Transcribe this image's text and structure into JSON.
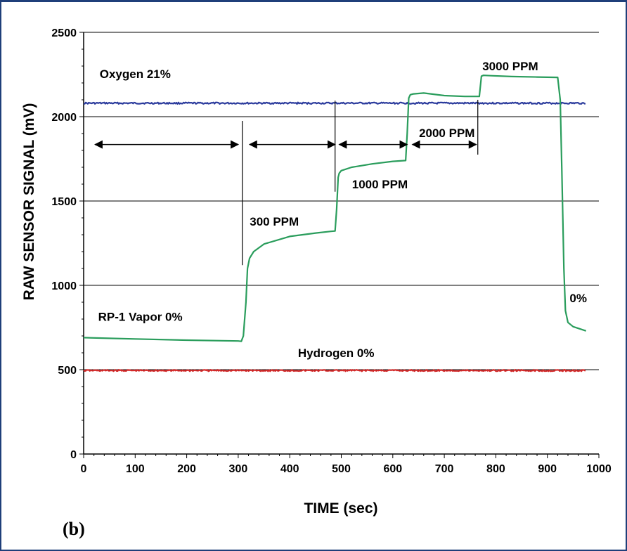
{
  "chart_data": {
    "type": "line",
    "title": "",
    "xlabel": "TIME (sec)",
    "ylabel": "RAW SENSOR SIGNAL (mV)",
    "xlim": [
      0,
      1000
    ],
    "ylim": [
      0,
      2500
    ],
    "x_ticks": [
      0,
      100,
      200,
      300,
      400,
      500,
      600,
      700,
      800,
      900,
      1000
    ],
    "y_ticks": [
      0,
      500,
      1000,
      1500,
      2000,
      2500
    ],
    "grid": "horizontal",
    "legend": "none",
    "panel_label": "(b)",
    "series": [
      {
        "name": "Oxygen 21%",
        "color": "#2a3a9c",
        "x": [
          0,
          975
        ],
        "y": [
          2080,
          2080
        ]
      },
      {
        "name": "Hydrogen 0%",
        "color": "#d42a2a",
        "x": [
          0,
          975
        ],
        "y": [
          495,
          495
        ]
      },
      {
        "name": "RP-1 Vapor",
        "color": "#2a9d5c",
        "x": [
          0,
          100,
          200,
          300,
          306,
          310,
          315,
          318,
          322,
          330,
          350,
          400,
          450,
          480,
          488,
          491,
          494,
          496,
          500,
          520,
          560,
          600,
          625,
          628,
          631,
          634,
          640,
          660,
          700,
          740,
          768,
          770,
          772,
          776,
          790,
          830,
          880,
          920,
          925,
          928,
          932,
          935,
          940,
          950,
          960,
          975
        ],
        "y": [
          690,
          682,
          675,
          670,
          668,
          700,
          900,
          1100,
          1160,
          1200,
          1245,
          1290,
          1310,
          1320,
          1322,
          1450,
          1640,
          1665,
          1680,
          1700,
          1720,
          1735,
          1740,
          1900,
          2110,
          2130,
          2135,
          2140,
          2125,
          2120,
          2120,
          2180,
          2240,
          2245,
          2243,
          2238,
          2235,
          2233,
          2100,
          1700,
          1100,
          850,
          780,
          755,
          745,
          730
        ]
      }
    ],
    "annotations": [
      {
        "text": "Oxygen  21%",
        "x": 100,
        "y": 2230
      },
      {
        "text": "Hydrogen  0%",
        "x": 490,
        "y": 575
      },
      {
        "text": "RP-1 Vapor 0%",
        "x": 110,
        "y": 790
      },
      {
        "text": "300 PPM",
        "x": 370,
        "y": 1355
      },
      {
        "text": "1000 PPM",
        "x": 575,
        "y": 1575
      },
      {
        "text": "2000 PPM",
        "x": 705,
        "y": 1880
      },
      {
        "text": "3000 PPM",
        "x": 828,
        "y": 2275
      },
      {
        "text": "0%",
        "x": 960,
        "y": 900
      }
    ],
    "interval_arrows": [
      {
        "x1": 22,
        "x2": 300,
        "y": 1835
      },
      {
        "x1": 322,
        "x2": 488,
        "y": 1835
      },
      {
        "x1": 496,
        "x2": 628,
        "y": 1835
      },
      {
        "x1": 638,
        "x2": 762,
        "y": 1835
      }
    ],
    "vertical_markers": [
      {
        "x": 308,
        "y1": 1120,
        "y2": 1975
      },
      {
        "x": 488,
        "y1": 1555,
        "y2": 2095
      },
      {
        "x": 765,
        "y1": 1775,
        "y2": 2100
      }
    ]
  }
}
